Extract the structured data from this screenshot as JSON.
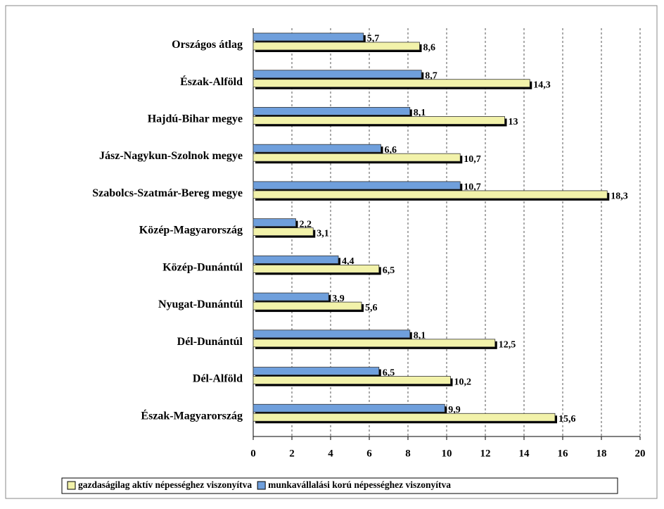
{
  "chart_data": {
    "type": "bar",
    "orientation": "horizontal",
    "categories": [
      "Országos átlag",
      "Észak-Alföld",
      "Hajdú-Bihar megye",
      "Jász-Nagykun-Szolnok megye",
      "Szabolcs-Szatmár-Bereg megye",
      "Közép-Magyarország",
      "Közép-Dunántúl",
      "Nyugat-Dunántúl",
      "Dél-Dunántúl",
      "Dél-Alföld",
      "Észak-Magyarország"
    ],
    "series": [
      {
        "name": "gazdaságilag aktív népességhez viszonyítva",
        "color": "#f2f2aa",
        "values": [
          8.6,
          14.3,
          13,
          10.7,
          18.3,
          3.1,
          6.5,
          5.6,
          12.5,
          10.2,
          15.6
        ],
        "value_labels": [
          "8,6",
          "14,3",
          "13",
          "10,7",
          "18,3",
          "3,1",
          "6,5",
          "5,6",
          "12,5",
          "10,2",
          "15,6"
        ]
      },
      {
        "name": "munkavállalási korú népességhez viszonyítva",
        "color": "#6f9fdc",
        "values": [
          5.7,
          8.7,
          8.1,
          6.6,
          10.7,
          2.2,
          4.4,
          3.9,
          8.1,
          6.5,
          9.9
        ],
        "value_labels": [
          "5,7",
          "8,7",
          "8,1",
          "6,6",
          "10,7",
          "2,2",
          "4,4",
          "3,9",
          "8,1",
          "6,5",
          "9,9"
        ]
      }
    ],
    "xlim": [
      0,
      20
    ],
    "xticks": [
      0,
      2,
      4,
      6,
      8,
      10,
      12,
      14,
      16,
      18,
      20
    ],
    "grid": true,
    "legend": "bottom"
  }
}
